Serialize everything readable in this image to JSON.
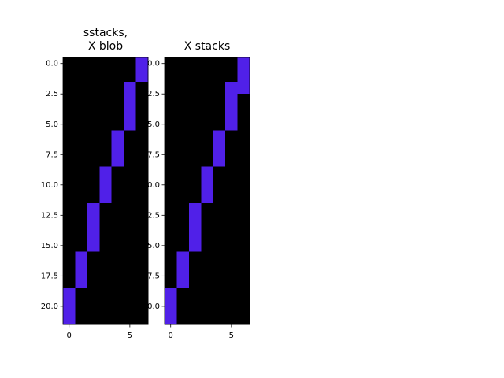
{
  "chart_data": [
    {
      "type": "heatmap",
      "title": [
        "sstacks,",
        "X blob"
      ],
      "colors": [
        "#000000",
        "#5020e8"
      ],
      "xlim": [
        -0.5,
        6.5
      ],
      "ylim": [
        21.5,
        -0.5
      ],
      "xticks": [
        0,
        5
      ],
      "yticks": [
        {
          "value": 0,
          "label": "0.0"
        },
        {
          "value": 2.5,
          "label": "2.5"
        },
        {
          "value": 5,
          "label": "5.0"
        },
        {
          "value": 7.5,
          "label": "7.5"
        },
        {
          "value": 10,
          "label": "10.0"
        },
        {
          "value": 12.5,
          "label": "12.5"
        },
        {
          "value": 15,
          "label": "15.0"
        },
        {
          "value": 17.5,
          "label": "17.5"
        },
        {
          "value": 20,
          "label": "20.0"
        }
      ],
      "values": [
        [
          0,
          0,
          0,
          0,
          0,
          0,
          1
        ],
        [
          0,
          0,
          0,
          0,
          0,
          0,
          1
        ],
        [
          0,
          0,
          0,
          0,
          0,
          1,
          0
        ],
        [
          0,
          0,
          0,
          0,
          0,
          1,
          0
        ],
        [
          0,
          0,
          0,
          0,
          0,
          1,
          0
        ],
        [
          0,
          0,
          0,
          0,
          0,
          1,
          0
        ],
        [
          0,
          0,
          0,
          0,
          1,
          0,
          0
        ],
        [
          0,
          0,
          0,
          0,
          1,
          0,
          0
        ],
        [
          0,
          0,
          0,
          0,
          1,
          0,
          0
        ],
        [
          0,
          0,
          0,
          1,
          0,
          0,
          0
        ],
        [
          0,
          0,
          0,
          1,
          0,
          0,
          0
        ],
        [
          0,
          0,
          0,
          1,
          0,
          0,
          0
        ],
        [
          0,
          0,
          1,
          0,
          0,
          0,
          0
        ],
        [
          0,
          0,
          1,
          0,
          0,
          0,
          0
        ],
        [
          0,
          0,
          1,
          0,
          0,
          0,
          0
        ],
        [
          0,
          0,
          1,
          0,
          0,
          0,
          0
        ],
        [
          0,
          1,
          0,
          0,
          0,
          0,
          0
        ],
        [
          0,
          1,
          0,
          0,
          0,
          0,
          0
        ],
        [
          0,
          1,
          0,
          0,
          0,
          0,
          0
        ],
        [
          1,
          0,
          0,
          0,
          0,
          0,
          0
        ],
        [
          1,
          0,
          0,
          0,
          0,
          0,
          0
        ],
        [
          1,
          0,
          0,
          0,
          0,
          0,
          0
        ]
      ]
    },
    {
      "type": "heatmap",
      "title": [
        "X stacks"
      ],
      "colors": [
        "#000000",
        "#5020e8"
      ],
      "xlim": [
        -0.5,
        6.5
      ],
      "ylim": [
        21.5,
        -0.5
      ],
      "xticks": [
        0,
        5
      ],
      "yticks": [
        {
          "value": 0,
          "label": "0.0"
        },
        {
          "value": 2.5,
          "label": "2.5"
        },
        {
          "value": 5,
          "label": "5.0"
        },
        {
          "value": 7.5,
          "label": "7.5"
        },
        {
          "value": 10,
          "label": "10.0"
        },
        {
          "value": 12.5,
          "label": "12.5"
        },
        {
          "value": 15,
          "label": "15.0"
        },
        {
          "value": 17.5,
          "label": "17.5"
        },
        {
          "value": 20,
          "label": "20.0"
        }
      ],
      "values": [
        [
          0,
          0,
          0,
          0,
          0,
          0,
          1
        ],
        [
          0,
          0,
          0,
          0,
          0,
          0,
          1
        ],
        [
          0,
          0,
          0,
          0,
          0,
          1,
          1
        ],
        [
          0,
          0,
          0,
          0,
          0,
          1,
          0
        ],
        [
          0,
          0,
          0,
          0,
          0,
          1,
          0
        ],
        [
          0,
          0,
          0,
          0,
          0,
          1,
          0
        ],
        [
          0,
          0,
          0,
          0,
          1,
          0,
          0
        ],
        [
          0,
          0,
          0,
          0,
          1,
          0,
          0
        ],
        [
          0,
          0,
          0,
          0,
          1,
          0,
          0
        ],
        [
          0,
          0,
          0,
          1,
          0,
          0,
          0
        ],
        [
          0,
          0,
          0,
          1,
          0,
          0,
          0
        ],
        [
          0,
          0,
          0,
          1,
          0,
          0,
          0
        ],
        [
          0,
          0,
          1,
          0,
          0,
          0,
          0
        ],
        [
          0,
          0,
          1,
          0,
          0,
          0,
          0
        ],
        [
          0,
          0,
          1,
          0,
          0,
          0,
          0
        ],
        [
          0,
          0,
          1,
          0,
          0,
          0,
          0
        ],
        [
          0,
          1,
          0,
          0,
          0,
          0,
          0
        ],
        [
          0,
          1,
          0,
          0,
          0,
          0,
          0
        ],
        [
          0,
          1,
          0,
          0,
          0,
          0,
          0
        ],
        [
          1,
          0,
          0,
          0,
          0,
          0,
          0
        ],
        [
          1,
          0,
          0,
          0,
          0,
          0,
          0
        ],
        [
          1,
          0,
          0,
          0,
          0,
          0,
          0
        ]
      ]
    }
  ]
}
